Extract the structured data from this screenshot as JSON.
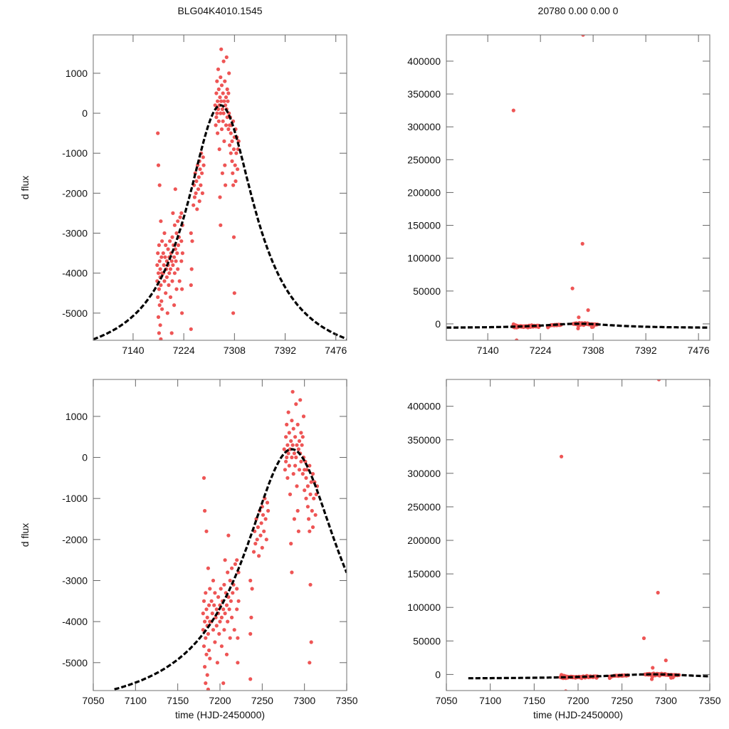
{
  "chart_data": {
    "type": "scatter",
    "titles": {
      "left": "BLG04K4010.1545",
      "right": "20780  0.00  0.00  0"
    },
    "ylabel": "d flux",
    "xlabel": "time (HJD-2450000)",
    "colors": {
      "points": "#ee5555",
      "model": "#000000",
      "frame": "#888888"
    },
    "model": {
      "type": "lorentzian",
      "t0": 7285,
      "width": 70,
      "baseline": -6300,
      "amplitude": 6500,
      "style": "dashed"
    },
    "panels": [
      {
        "id": "top-left",
        "xlim": [
          7074,
          7494
        ],
        "ylim": [
          -5680,
          1960
        ],
        "xticks": [
          7140,
          7224,
          7308,
          7392,
          7476
        ],
        "yticks": [
          1000,
          0,
          -1000,
          -2000,
          -3000,
          -4000,
          -5000
        ],
        "model_t": [
          7074,
          7494
        ],
        "show_ylabel": true,
        "show_xlabel": false
      },
      {
        "id": "top-right",
        "xlim": [
          7074,
          7494
        ],
        "ylim": [
          -25000,
          440000
        ],
        "xticks": [
          7140,
          7224,
          7308,
          7392,
          7476
        ],
        "yticks": [
          400000,
          350000,
          300000,
          250000,
          200000,
          150000,
          100000,
          50000,
          0
        ],
        "model_t": [
          7074,
          7494
        ],
        "show_ylabel": false,
        "show_xlabel": false
      },
      {
        "id": "bottom-left",
        "xlim": [
          7050,
          7350
        ],
        "ylim": [
          -5680,
          1900
        ],
        "xticks": [
          7050,
          7100,
          7150,
          7200,
          7250,
          7300,
          7350
        ],
        "yticks": [
          1000,
          0,
          -1000,
          -2000,
          -3000,
          -4000,
          -5000
        ],
        "model_t": [
          7075,
          7350
        ],
        "show_ylabel": true,
        "show_xlabel": true
      },
      {
        "id": "bottom-right",
        "xlim": [
          7050,
          7350
        ],
        "ylim": [
          -24000,
          440000
        ],
        "xticks": [
          7050,
          7100,
          7150,
          7200,
          7250,
          7300,
          7350
        ],
        "yticks": [
          400000,
          350000,
          300000,
          250000,
          200000,
          150000,
          100000,
          50000,
          0
        ],
        "model_t": [
          7075,
          7350
        ],
        "show_ylabel": false,
        "show_xlabel": true
      }
    ],
    "points": [
      [
        7180,
        -3800
      ],
      [
        7180,
        -4200
      ],
      [
        7181,
        -4600
      ],
      [
        7181,
        -3500
      ],
      [
        7181,
        -500
      ],
      [
        7182,
        -5100
      ],
      [
        7182,
        -4000
      ],
      [
        7182,
        -1300
      ],
      [
        7183,
        -3300
      ],
      [
        7183,
        -4400
      ],
      [
        7183,
        -5500
      ],
      [
        7184,
        -4800
      ],
      [
        7184,
        -3700
      ],
      [
        7184,
        -1800
      ],
      [
        7185,
        -4100
      ],
      [
        7185,
        -3900
      ],
      [
        7185,
        -5300
      ],
      [
        7186,
        -2700
      ],
      [
        7186,
        -4300
      ],
      [
        7186,
        -5650
      ],
      [
        7187,
        -3600
      ],
      [
        7187,
        -4700
      ],
      [
        7188,
        -3200
      ],
      [
        7188,
        -4000
      ],
      [
        7188,
        -4900
      ],
      [
        7190,
        -3500
      ],
      [
        7190,
        -4000
      ],
      [
        7191,
        -3800
      ],
      [
        7192,
        -4200
      ],
      [
        7192,
        -3000
      ],
      [
        7193,
        -3600
      ],
      [
        7194,
        -4500
      ],
      [
        7194,
        -3300
      ],
      [
        7195,
        -3900
      ],
      [
        7196,
        -4100
      ],
      [
        7196,
        -3700
      ],
      [
        7197,
        -5000
      ],
      [
        7198,
        -3400
      ],
      [
        7198,
        -3800
      ],
      [
        7199,
        -4300
      ],
      [
        7200,
        -3600
      ],
      [
        7200,
        -4000
      ],
      [
        7201,
        -3200
      ],
      [
        7202,
        -3900
      ],
      [
        7202,
        -4600
      ],
      [
        7203,
        -3500
      ],
      [
        7204,
        -3700
      ],
      [
        7204,
        -5500
      ],
      [
        7205,
        -3100
      ],
      [
        7205,
        -4200
      ],
      [
        7206,
        -2500
      ],
      [
        7206,
        -3800
      ],
      [
        7207,
        -3300
      ],
      [
        7208,
        -3600
      ],
      [
        7208,
        -4800
      ],
      [
        7209,
        -2800
      ],
      [
        7209,
        -4000
      ],
      [
        7210,
        -1900
      ],
      [
        7210,
        -3400
      ],
      [
        7211,
        -3700
      ],
      [
        7212,
        -3000
      ],
      [
        7212,
        -4400
      ],
      [
        7213,
        -3500
      ],
      [
        7214,
        -2700
      ],
      [
        7214,
        -3900
      ],
      [
        7215,
        -3300
      ],
      [
        7216,
        -3100
      ],
      [
        7217,
        -4200
      ],
      [
        7218,
        -2600
      ],
      [
        7220,
        -2500
      ],
      [
        7220,
        -3200
      ],
      [
        7220,
        -3700
      ],
      [
        7221,
        -4400
      ],
      [
        7221,
        -5000
      ],
      [
        7222,
        -2800
      ],
      [
        7222,
        -3500
      ],
      [
        7236,
        -3000
      ],
      [
        7236,
        -4300
      ],
      [
        7236,
        -5400
      ],
      [
        7237,
        -3900
      ],
      [
        7238,
        -3200
      ],
      [
        7240,
        -2300
      ],
      [
        7241,
        -1800
      ],
      [
        7242,
        -2100
      ],
      [
        7243,
        -1500
      ],
      [
        7244,
        -2000
      ],
      [
        7245,
        -1700
      ],
      [
        7246,
        -2400
      ],
      [
        7247,
        -1300
      ],
      [
        7248,
        -1900
      ],
      [
        7249,
        -1600
      ],
      [
        7250,
        -1200
      ],
      [
        7250,
        -2200
      ],
      [
        7251,
        -1400
      ],
      [
        7252,
        -1800
      ],
      [
        7253,
        -1000
      ],
      [
        7254,
        -1500
      ],
      [
        7255,
        -2000
      ],
      [
        7256,
        -1100
      ],
      [
        7257,
        -1300
      ],
      [
        7276,
        200
      ],
      [
        7277,
        -300
      ],
      [
        7278,
        500
      ],
      [
        7278,
        -100
      ],
      [
        7279,
        800
      ],
      [
        7279,
        0
      ],
      [
        7280,
        300
      ],
      [
        7280,
        -500
      ],
      [
        7281,
        1100
      ],
      [
        7281,
        100
      ],
      [
        7282,
        -200
      ],
      [
        7282,
        600
      ],
      [
        7283,
        200
      ],
      [
        7283,
        -900
      ],
      [
        7284,
        400
      ],
      [
        7284,
        -2100
      ],
      [
        7285,
        0
      ],
      [
        7285,
        900
      ],
      [
        7285,
        -2800
      ],
      [
        7286,
        1600
      ],
      [
        7286,
        300
      ],
      [
        7287,
        -400
      ],
      [
        7287,
        700
      ],
      [
        7288,
        100
      ],
      [
        7288,
        -1500
      ],
      [
        7289,
        500
      ],
      [
        7289,
        -200
      ],
      [
        7290,
        1300
      ],
      [
        7290,
        0
      ],
      [
        7291,
        300
      ],
      [
        7291,
        -700
      ],
      [
        7292,
        800
      ],
      [
        7292,
        -1300
      ],
      [
        7293,
        200
      ],
      [
        7293,
        -1800
      ],
      [
        7294,
        400
      ],
      [
        7294,
        -300
      ],
      [
        7295,
        1400
      ],
      [
        7295,
        100
      ],
      [
        7296,
        -100
      ],
      [
        7296,
        600
      ],
      [
        7297,
        300
      ],
      [
        7298,
        -400
      ],
      [
        7298,
        500
      ],
      [
        7299,
        1000
      ],
      [
        7299,
        0
      ],
      [
        7300,
        -300
      ],
      [
        7300,
        -800
      ],
      [
        7301,
        -100
      ],
      [
        7302,
        -1000
      ],
      [
        7302,
        -500
      ],
      [
        7303,
        -300
      ],
      [
        7304,
        -1200
      ],
      [
        7304,
        -700
      ],
      [
        7305,
        -1500
      ],
      [
        7306,
        -200
      ],
      [
        7306,
        -1800
      ],
      [
        7307,
        -900
      ],
      [
        7307,
        -3100
      ],
      [
        7308,
        -600
      ],
      [
        7308,
        -4500
      ],
      [
        7309,
        -1300
      ],
      [
        7310,
        -400
      ],
      [
        7310,
        -1700
      ],
      [
        7311,
        -1000
      ],
      [
        7312,
        -600
      ],
      [
        7313,
        -1400
      ],
      [
        7314,
        -900
      ],
      [
        7315,
        -700
      ],
      [
        7181,
        325000
      ],
      [
        7292,
        440000
      ],
      [
        7291,
        122000
      ],
      [
        7275,
        54000
      ],
      [
        7300,
        21000
      ],
      [
        7285,
        10000
      ],
      [
        7186,
        -25000
      ],
      [
        7284,
        -7000
      ],
      [
        7306,
        -5000
      ]
    ]
  }
}
